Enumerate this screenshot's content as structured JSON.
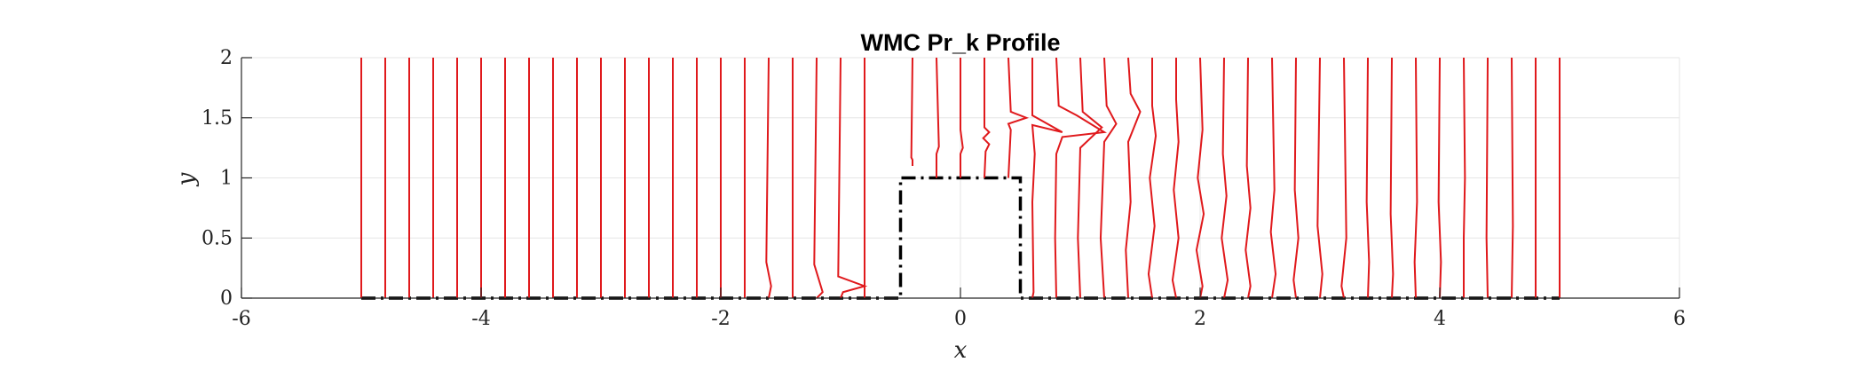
{
  "chart_data": {
    "type": "line",
    "title": "WMC Pr_k Profile",
    "xlabel": "x",
    "ylabel": "y",
    "xlim": [
      -6,
      6
    ],
    "ylim": [
      0,
      2
    ],
    "xticks": [
      -6,
      -4,
      -2,
      0,
      2,
      4,
      6
    ],
    "yticks": [
      0,
      0.5,
      1,
      1.5,
      2
    ],
    "grid": true,
    "series_color": "#e0191c",
    "geometry_color": "#000000",
    "geometry": {
      "x": [
        -5,
        -0.5,
        -0.5,
        0.5,
        0.5,
        5
      ],
      "y": [
        0,
        0,
        1,
        1,
        0,
        0
      ]
    },
    "profiles": [
      {
        "x0": -5.0,
        "points": [
          [
            -5.0,
            0
          ],
          [
            -5.0,
            2
          ]
        ]
      },
      {
        "x0": -4.8,
        "points": [
          [
            -4.8,
            0
          ],
          [
            -4.8,
            2
          ]
        ]
      },
      {
        "x0": -4.6,
        "points": [
          [
            -4.6,
            0
          ],
          [
            -4.6,
            2
          ]
        ]
      },
      {
        "x0": -4.4,
        "points": [
          [
            -4.4,
            0
          ],
          [
            -4.4,
            2
          ]
        ]
      },
      {
        "x0": -4.2,
        "points": [
          [
            -4.2,
            0
          ],
          [
            -4.2,
            2
          ]
        ]
      },
      {
        "x0": -4.0,
        "points": [
          [
            -4.0,
            0
          ],
          [
            -4.0,
            2
          ]
        ]
      },
      {
        "x0": -3.8,
        "points": [
          [
            -3.8,
            0
          ],
          [
            -3.8,
            2
          ]
        ]
      },
      {
        "x0": -3.6,
        "points": [
          [
            -3.6,
            0
          ],
          [
            -3.6,
            2
          ]
        ]
      },
      {
        "x0": -3.4,
        "points": [
          [
            -3.4,
            0
          ],
          [
            -3.4,
            2
          ]
        ]
      },
      {
        "x0": -3.2,
        "points": [
          [
            -3.2,
            0
          ],
          [
            -3.2,
            2
          ]
        ]
      },
      {
        "x0": -3.0,
        "points": [
          [
            -3.0,
            0
          ],
          [
            -3.0,
            2
          ]
        ]
      },
      {
        "x0": -2.8,
        "points": [
          [
            -2.8,
            0
          ],
          [
            -2.8,
            2
          ]
        ]
      },
      {
        "x0": -2.6,
        "points": [
          [
            -2.6,
            0
          ],
          [
            -2.6,
            2
          ]
        ]
      },
      {
        "x0": -2.4,
        "points": [
          [
            -2.4,
            0
          ],
          [
            -2.4,
            2
          ]
        ]
      },
      {
        "x0": -2.2,
        "points": [
          [
            -2.2,
            0
          ],
          [
            -2.2,
            2
          ]
        ]
      },
      {
        "x0": -2.0,
        "points": [
          [
            -2.0,
            0
          ],
          [
            -2.0,
            2
          ]
        ]
      },
      {
        "x0": -1.8,
        "points": [
          [
            -1.8,
            0
          ],
          [
            -1.8,
            0.3
          ],
          [
            -1.8,
            2
          ]
        ]
      },
      {
        "x0": -1.6,
        "points": [
          [
            -1.6,
            0
          ],
          [
            -1.58,
            0.1
          ],
          [
            -1.62,
            0.3
          ],
          [
            -1.6,
            2
          ]
        ]
      },
      {
        "x0": -1.4,
        "points": [
          [
            -1.4,
            0
          ],
          [
            -1.4,
            2
          ]
        ]
      },
      {
        "x0": -1.2,
        "points": [
          [
            -1.2,
            0
          ],
          [
            -1.15,
            0.05
          ],
          [
            -1.22,
            0.28
          ],
          [
            -1.2,
            2
          ]
        ]
      },
      {
        "x0": -1.0,
        "points": [
          [
            -1.0,
            0
          ],
          [
            -0.98,
            0.05
          ],
          [
            -0.8,
            0.1
          ],
          [
            -1.02,
            0.18
          ],
          [
            -1.0,
            2
          ]
        ]
      },
      {
        "x0": -0.8,
        "points": [
          [
            -0.8,
            0
          ],
          [
            -0.8,
            2
          ]
        ]
      },
      {
        "x0": -0.4,
        "points": [
          [
            -0.4,
            1.1
          ],
          [
            -0.4,
            1.15
          ],
          [
            -0.41,
            1.17
          ],
          [
            -0.4,
            2
          ]
        ]
      },
      {
        "x0": -0.2,
        "points": [
          [
            -0.2,
            1.0
          ],
          [
            -0.2,
            1.2
          ],
          [
            -0.18,
            1.26
          ],
          [
            -0.2,
            2
          ]
        ]
      },
      {
        "x0": 0.0,
        "points": [
          [
            0.0,
            1.0
          ],
          [
            0.0,
            1.2
          ],
          [
            0.02,
            1.25
          ],
          [
            0.0,
            1.4
          ],
          [
            0.0,
            2
          ]
        ]
      },
      {
        "x0": 0.2,
        "points": [
          [
            0.2,
            1.0
          ],
          [
            0.21,
            1.22
          ],
          [
            0.24,
            1.28
          ],
          [
            0.19,
            1.33
          ],
          [
            0.24,
            1.38
          ],
          [
            0.2,
            1.42
          ],
          [
            0.2,
            2
          ]
        ]
      },
      {
        "x0": 0.4,
        "points": [
          [
            0.4,
            1.0
          ],
          [
            0.42,
            1.4
          ],
          [
            0.4,
            1.45
          ],
          [
            0.55,
            1.5
          ],
          [
            0.42,
            1.55
          ],
          [
            0.4,
            2
          ]
        ]
      },
      {
        "x0": 0.6,
        "points": [
          [
            0.6,
            0
          ],
          [
            0.61,
            0.05
          ],
          [
            0.6,
            0.8
          ],
          [
            0.62,
            1.2
          ],
          [
            0.6,
            1.44
          ],
          [
            0.85,
            1.38
          ],
          [
            0.6,
            1.52
          ],
          [
            0.6,
            2
          ]
        ]
      },
      {
        "x0": 0.8,
        "points": [
          [
            0.8,
            0
          ],
          [
            0.79,
            0.5
          ],
          [
            0.8,
            1.2
          ],
          [
            0.85,
            1.34
          ],
          [
            1.2,
            1.38
          ],
          [
            0.97,
            1.52
          ],
          [
            0.82,
            1.6
          ],
          [
            0.8,
            2
          ]
        ]
      },
      {
        "x0": 1.0,
        "points": [
          [
            1.0,
            0
          ],
          [
            0.98,
            0.5
          ],
          [
            1.0,
            1.25
          ],
          [
            1.18,
            1.42
          ],
          [
            1.02,
            1.55
          ],
          [
            1.0,
            2
          ]
        ]
      },
      {
        "x0": 1.2,
        "points": [
          [
            1.2,
            0
          ],
          [
            1.17,
            0.5
          ],
          [
            1.2,
            1.3
          ],
          [
            1.3,
            1.45
          ],
          [
            1.22,
            1.6
          ],
          [
            1.2,
            2
          ]
        ]
      },
      {
        "x0": 1.4,
        "points": [
          [
            1.4,
            0
          ],
          [
            1.38,
            0.4
          ],
          [
            1.42,
            0.8
          ],
          [
            1.4,
            1.3
          ],
          [
            1.5,
            1.55
          ],
          [
            1.42,
            1.7
          ],
          [
            1.4,
            2
          ]
        ]
      },
      {
        "x0": 1.6,
        "points": [
          [
            1.6,
            0
          ],
          [
            1.57,
            0.2
          ],
          [
            1.62,
            0.6
          ],
          [
            1.58,
            1.0
          ],
          [
            1.63,
            1.35
          ],
          [
            1.6,
            1.6
          ],
          [
            1.6,
            2
          ]
        ]
      },
      {
        "x0": 1.8,
        "points": [
          [
            1.8,
            0
          ],
          [
            1.77,
            0.15
          ],
          [
            1.82,
            0.5
          ],
          [
            1.78,
            0.9
          ],
          [
            1.82,
            1.3
          ],
          [
            1.8,
            1.65
          ],
          [
            1.8,
            2
          ]
        ]
      },
      {
        "x0": 2.0,
        "points": [
          [
            2.0,
            0
          ],
          [
            2.02,
            0.1
          ],
          [
            1.97,
            0.4
          ],
          [
            2.03,
            0.7
          ],
          [
            1.98,
            1.0
          ],
          [
            2.02,
            1.4
          ],
          [
            2.0,
            2
          ]
        ]
      },
      {
        "x0": 2.2,
        "points": [
          [
            2.2,
            0
          ],
          [
            2.23,
            0.15
          ],
          [
            2.18,
            0.5
          ],
          [
            2.22,
            0.85
          ],
          [
            2.19,
            1.2
          ],
          [
            2.2,
            2
          ]
        ]
      },
      {
        "x0": 2.4,
        "points": [
          [
            2.4,
            0
          ],
          [
            2.42,
            0.1
          ],
          [
            2.38,
            0.4
          ],
          [
            2.42,
            0.75
          ],
          [
            2.39,
            1.1
          ],
          [
            2.4,
            2
          ]
        ]
      },
      {
        "x0": 2.6,
        "points": [
          [
            2.6,
            0
          ],
          [
            2.63,
            0.2
          ],
          [
            2.59,
            0.55
          ],
          [
            2.62,
            0.9
          ],
          [
            2.6,
            2
          ]
        ]
      },
      {
        "x0": 2.8,
        "points": [
          [
            2.8,
            0
          ],
          [
            2.78,
            0.15
          ],
          [
            2.82,
            0.5
          ],
          [
            2.79,
            0.9
          ],
          [
            2.8,
            2
          ]
        ]
      },
      {
        "x0": 3.0,
        "points": [
          [
            3.0,
            0
          ],
          [
            3.02,
            0.2
          ],
          [
            2.98,
            0.6
          ],
          [
            3.0,
            2
          ]
        ]
      },
      {
        "x0": 3.2,
        "points": [
          [
            3.2,
            0
          ],
          [
            3.18,
            0.1
          ],
          [
            3.22,
            0.5
          ],
          [
            3.2,
            2
          ]
        ]
      },
      {
        "x0": 3.4,
        "points": [
          [
            3.4,
            0
          ],
          [
            3.41,
            0.3
          ],
          [
            3.39,
            0.8
          ],
          [
            3.4,
            2
          ]
        ]
      },
      {
        "x0": 3.6,
        "points": [
          [
            3.6,
            0
          ],
          [
            3.61,
            0.2
          ],
          [
            3.59,
            0.7
          ],
          [
            3.6,
            2
          ]
        ]
      },
      {
        "x0": 3.8,
        "points": [
          [
            3.8,
            0
          ],
          [
            3.79,
            0.3
          ],
          [
            3.81,
            0.8
          ],
          [
            3.8,
            2
          ]
        ]
      },
      {
        "x0": 4.0,
        "points": [
          [
            4.0,
            0
          ],
          [
            4.01,
            0.3
          ],
          [
            3.99,
            0.8
          ],
          [
            4.0,
            2
          ]
        ]
      },
      {
        "x0": 4.2,
        "points": [
          [
            4.2,
            0
          ],
          [
            4.2,
            0.5
          ],
          [
            4.21,
            1.0
          ],
          [
            4.2,
            2
          ]
        ]
      },
      {
        "x0": 4.4,
        "points": [
          [
            4.4,
            0
          ],
          [
            4.39,
            0.5
          ],
          [
            4.4,
            2
          ]
        ]
      },
      {
        "x0": 4.6,
        "points": [
          [
            4.6,
            0
          ],
          [
            4.61,
            0.6
          ],
          [
            4.6,
            2
          ]
        ]
      },
      {
        "x0": 4.8,
        "points": [
          [
            4.8,
            0
          ],
          [
            4.8,
            2
          ]
        ]
      },
      {
        "x0": 5.0,
        "points": [
          [
            5.0,
            0
          ],
          [
            5.0,
            2
          ]
        ]
      }
    ]
  }
}
